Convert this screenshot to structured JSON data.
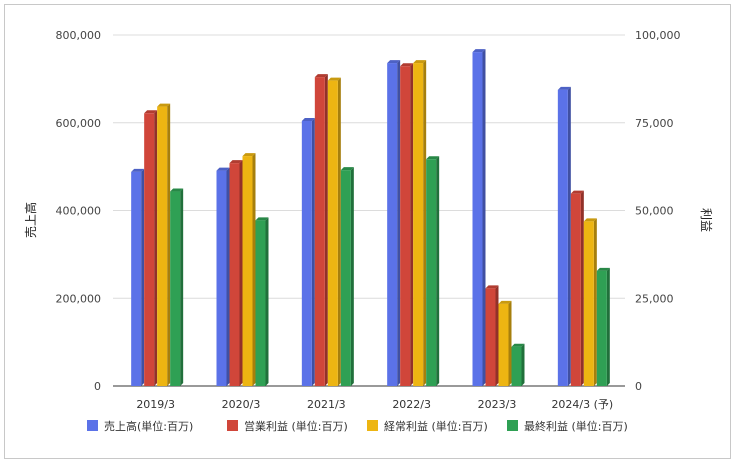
{
  "chart_data": {
    "type": "bar",
    "categories": [
      "2019/3",
      "2020/3",
      "2021/3",
      "2022/3",
      "2023/3",
      "2024/3 (予)"
    ],
    "ylabel_left": "売上高",
    "ylabel_right": "利益",
    "left_axis": {
      "min": 0,
      "max": 800000,
      "ticks": [
        0,
        200000,
        400000,
        600000,
        800000
      ],
      "tick_labels": [
        "0",
        "200,000",
        "400,000",
        "600,000",
        "800,000"
      ]
    },
    "right_axis": {
      "min": 0,
      "max": 100000,
      "ticks": [
        0,
        25000,
        50000,
        75000,
        100000
      ],
      "tick_labels": [
        "0",
        "25,000",
        "50,000",
        "75,000",
        "100,000"
      ]
    },
    "grid": true,
    "legend_position": "bottom",
    "series": [
      {
        "name": "売上高(単位:百万)",
        "axis": "left",
        "color": "#5b72e8",
        "values": [
          488000,
          491000,
          604000,
          736000,
          761000,
          675000
        ]
      },
      {
        "name": "営業利益 (単位:百万)",
        "axis": "right",
        "color": "#d0463a",
        "values": [
          77700,
          63500,
          88000,
          91100,
          27800,
          54800
        ]
      },
      {
        "name": "経常利益 (単位:百万)",
        "axis": "right",
        "color": "#edb512",
        "values": [
          79600,
          65500,
          87000,
          92000,
          23400,
          46900
        ]
      },
      {
        "name": "最終利益 (単位:百万)",
        "axis": "right",
        "color": "#2fa054",
        "values": [
          55400,
          47200,
          61500,
          64600,
          11200,
          32800
        ]
      }
    ]
  }
}
